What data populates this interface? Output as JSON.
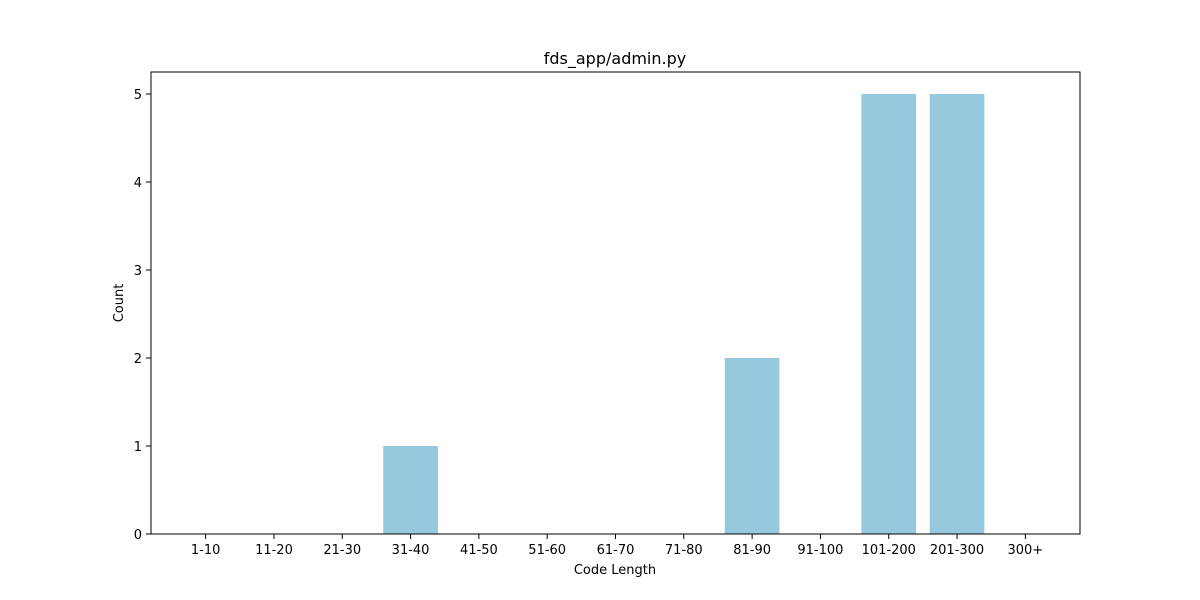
{
  "chart_data": {
    "type": "bar",
    "title": "fds_app/admin.py",
    "xlabel": "Code Length",
    "ylabel": "Count",
    "categories": [
      "1-10",
      "11-20",
      "21-30",
      "31-40",
      "41-50",
      "51-60",
      "61-70",
      "71-80",
      "81-90",
      "91-100",
      "101-200",
      "201-300",
      "300+"
    ],
    "values": [
      0,
      0,
      0,
      1,
      0,
      0,
      0,
      0,
      2,
      0,
      5,
      5,
      0
    ],
    "ylim": [
      0,
      5.25
    ],
    "yticks": [
      0,
      1,
      2,
      3,
      4,
      5
    ],
    "grid": false,
    "legend": "none",
    "bar_color": "#96c9dd",
    "axis_color": "#000000"
  }
}
